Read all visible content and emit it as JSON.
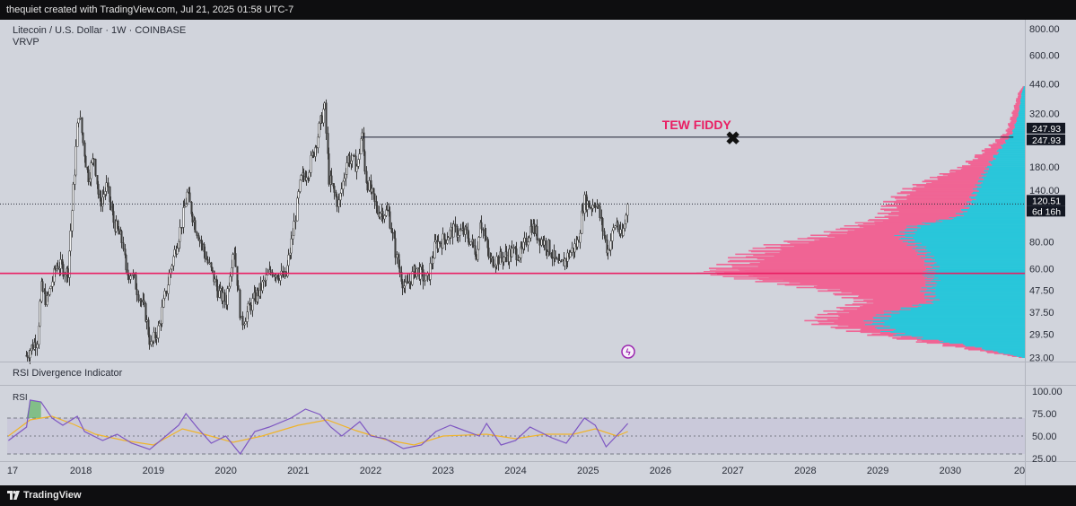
{
  "header": {
    "attribution": "thequiet created with TradingView.com, Jul 21, 2025 01:58 UTC-7"
  },
  "footer": {
    "brand": "TradingView"
  },
  "colors": {
    "background": "#d1d4dc",
    "candle": "#3d3d3d",
    "rsi_line": "#7e57c2",
    "rsi_ma": "#f0b429",
    "rsi_band": "#c4bfd8",
    "support_line": "#e91e63",
    "annotation": "#e91e63",
    "vp_up": "#26c6da",
    "vp_down": "#f06292"
  },
  "chart_data": [
    {
      "type": "candlestick",
      "title": "Litecoin / U.S. Dollar · 1W · COINBASE",
      "indicator": "VRVP",
      "y_scale": "log",
      "ylim": [
        22,
        880
      ],
      "xlim": [
        "2016-12-25",
        "2031-01-12"
      ],
      "y_ticks": [
        "800.00",
        "600.00",
        "440.00",
        "320.00",
        "180.00",
        "140.00",
        "80.00",
        "60.00",
        "47.50",
        "37.50",
        "29.50",
        "23.00"
      ],
      "x_ticks": [
        "17",
        "2018",
        "2019",
        "2020",
        "2021",
        "2022",
        "2023",
        "2024",
        "2025",
        "2026",
        "2027",
        "2028",
        "2029",
        "2030",
        "20"
      ],
      "price_path": [
        [
          "2017-03-27",
          23.5
        ],
        [
          "2017-05-22",
          28.0
        ],
        [
          "2017-06-12",
          48.5
        ],
        [
          "2017-07-10",
          42.0
        ],
        [
          "2017-08-28",
          62.0
        ],
        [
          "2017-09-11",
          62.5
        ],
        [
          "2017-10-23",
          57.0
        ],
        [
          "2017-11-27",
          165.0
        ],
        [
          "2017-12-18",
          330.0
        ],
        [
          "2018-01-08",
          240.0
        ],
        [
          "2018-02-05",
          160.0
        ],
        [
          "2018-03-05",
          200.0
        ],
        [
          "2018-04-02",
          120.0
        ],
        [
          "2018-05-07",
          145.0
        ],
        [
          "2018-06-11",
          100.0
        ],
        [
          "2018-07-30",
          78.0
        ],
        [
          "2018-08-13",
          56.0
        ],
        [
          "2018-09-10",
          58.0
        ],
        [
          "2018-11-19",
          37.0
        ],
        [
          "2018-12-17",
          26.0
        ],
        [
          "2019-01-28",
          32.0
        ],
        [
          "2019-03-25",
          60.0
        ],
        [
          "2019-05-13",
          91.0
        ],
        [
          "2019-06-17",
          135.0
        ],
        [
          "2019-07-29",
          95.0
        ],
        [
          "2019-09-16",
          70.0
        ],
        [
          "2019-11-25",
          46.0
        ],
        [
          "2019-12-30",
          42.0
        ],
        [
          "2020-02-10",
          78.0
        ],
        [
          "2020-03-16",
          33.0
        ],
        [
          "2020-05-25",
          44.0
        ],
        [
          "2020-08-17",
          59.0
        ],
        [
          "2020-10-26",
          54.0
        ],
        [
          "2020-11-30",
          84.0
        ],
        [
          "2021-01-11",
          155.0
        ],
        [
          "2021-02-22",
          175.0
        ],
        [
          "2021-04-05",
          250.0
        ],
        [
          "2021-05-10",
          350.0
        ],
        [
          "2021-05-31",
          160.0
        ],
        [
          "2021-07-19",
          120.0
        ],
        [
          "2021-09-06",
          200.0
        ],
        [
          "2021-10-25",
          180.0
        ],
        [
          "2021-11-15",
          265.0
        ],
        [
          "2021-12-06",
          160.0
        ],
        [
          "2022-01-31",
          112.0
        ],
        [
          "2022-03-28",
          110.0
        ],
        [
          "2022-05-16",
          62.0
        ],
        [
          "2022-06-20",
          48.0
        ],
        [
          "2022-08-15",
          60.0
        ],
        [
          "2022-10-10",
          52.0
        ],
        [
          "2022-11-21",
          78.0
        ],
        [
          "2023-01-02",
          82.0
        ],
        [
          "2023-02-13",
          90.0
        ],
        [
          "2023-04-24",
          88.0
        ],
        [
          "2023-06-19",
          70.0
        ],
        [
          "2023-07-03",
          105.0
        ],
        [
          "2023-08-21",
          65.0
        ],
        [
          "2023-10-30",
          68.0
        ],
        [
          "2023-12-18",
          72.0
        ],
        [
          "2024-01-29",
          70.0
        ],
        [
          "2024-03-18",
          96.0
        ],
        [
          "2024-04-22",
          85.0
        ],
        [
          "2024-06-17",
          75.0
        ],
        [
          "2024-08-05",
          60.0
        ],
        [
          "2024-09-16",
          68.0
        ],
        [
          "2024-11-11",
          80.0
        ],
        [
          "2024-12-09",
          125.0
        ],
        [
          "2025-01-13",
          118.0
        ],
        [
          "2025-02-10",
          125.0
        ],
        [
          "2025-04-07",
          72.0
        ],
        [
          "2025-05-19",
          100.0
        ],
        [
          "2025-06-16",
          82.0
        ],
        [
          "2025-07-21",
          120.51
        ]
      ],
      "horizontal_lines": [
        {
          "label": "TEW FIDDY",
          "price": 247.93,
          "start": "2021-11-15",
          "end": "2030-11-15",
          "color": "#1c2033"
        },
        {
          "price": 57.0,
          "color": "#e91e63",
          "full_width": true
        }
      ],
      "price_badges": [
        {
          "text": "247.93",
          "price": 247.93
        },
        {
          "text": "247.93",
          "price": 247.93
        },
        {
          "text": "120.51",
          "price": 120.51
        },
        {
          "text": "6d 16h",
          "price": 120.51
        }
      ],
      "annotations": [
        {
          "text": "TEW FIDDY",
          "date": "2026-07-01",
          "price": 270.0
        },
        {
          "text": "✖",
          "date": "2027-01-01",
          "price": 248.0
        }
      ],
      "volume_profile": {
        "levels": [
          [
            23,
            0.02,
            0.01
          ],
          [
            26,
            0.25,
            0.18
          ],
          [
            29.5,
            0.5,
            0.42
          ],
          [
            33.5,
            0.68,
            0.5
          ],
          [
            37.5,
            0.62,
            0.44
          ],
          [
            42,
            0.52,
            0.3
          ],
          [
            47.5,
            0.64,
            0.32
          ],
          [
            53,
            0.86,
            0.3
          ],
          [
            57,
            1.0,
            0.32
          ],
          [
            60,
            0.96,
            0.3
          ],
          [
            68,
            0.9,
            0.32
          ],
          [
            76,
            0.82,
            0.35
          ],
          [
            85,
            0.66,
            0.4
          ],
          [
            95,
            0.55,
            0.36
          ],
          [
            105,
            0.45,
            0.22
          ],
          [
            120,
            0.44,
            0.18
          ],
          [
            140,
            0.38,
            0.16
          ],
          [
            160,
            0.29,
            0.14
          ],
          [
            180,
            0.2,
            0.12
          ],
          [
            220,
            0.12,
            0.08
          ],
          [
            260,
            0.06,
            0.04
          ],
          [
            320,
            0.04,
            0.02
          ],
          [
            400,
            0.02,
            0.01
          ],
          [
            430,
            0.005,
            0.003
          ]
        ]
      }
    },
    {
      "type": "line",
      "title": "RSI Divergence Indicator",
      "legend": "RSI",
      "ylim": [
        22,
        106
      ],
      "y_ticks": [
        "100.00",
        "75.00",
        "50.00",
        "25.00"
      ],
      "bands": {
        "upper": 70,
        "middle": 50,
        "lower": 30
      },
      "series": [
        {
          "values": [
            [
              2017.0,
              45
            ],
            [
              2017.25,
              60
            ],
            [
              2017.3,
              90
            ],
            [
              2017.45,
              88
            ],
            [
              2017.6,
              70
            ],
            [
              2017.75,
              62
            ],
            [
              2017.95,
              72
            ],
            [
              2018.05,
              55
            ],
            [
              2018.3,
              45
            ],
            [
              2018.5,
              52
            ],
            [
              2018.7,
              42
            ],
            [
              2018.95,
              35
            ],
            [
              2019.1,
              45
            ],
            [
              2019.35,
              62
            ],
            [
              2019.45,
              75
            ],
            [
              2019.6,
              60
            ],
            [
              2019.8,
              42
            ],
            [
              2020.0,
              50
            ],
            [
              2020.2,
              30
            ],
            [
              2020.4,
              55
            ],
            [
              2020.6,
              60
            ],
            [
              2020.9,
              70
            ],
            [
              2021.1,
              80
            ],
            [
              2021.3,
              74
            ],
            [
              2021.45,
              60
            ],
            [
              2021.6,
              50
            ],
            [
              2021.85,
              66
            ],
            [
              2022.0,
              50
            ],
            [
              2022.2,
              47
            ],
            [
              2022.45,
              36
            ],
            [
              2022.7,
              40
            ],
            [
              2022.9,
              55
            ],
            [
              2023.1,
              62
            ],
            [
              2023.5,
              50
            ],
            [
              2023.6,
              64
            ],
            [
              2023.8,
              40
            ],
            [
              2024.0,
              45
            ],
            [
              2024.2,
              60
            ],
            [
              2024.5,
              48
            ],
            [
              2024.7,
              42
            ],
            [
              2024.95,
              70
            ],
            [
              2025.1,
              62
            ],
            [
              2025.25,
              38
            ],
            [
              2025.45,
              55
            ],
            [
              2025.55,
              64
            ]
          ]
        },
        {
          "values": [
            [
              2017.0,
              50
            ],
            [
              2017.3,
              68
            ],
            [
              2017.6,
              72
            ],
            [
              2017.9,
              63
            ],
            [
              2018.2,
              52
            ],
            [
              2018.6,
              45
            ],
            [
              2019.0,
              40
            ],
            [
              2019.4,
              58
            ],
            [
              2019.7,
              52
            ],
            [
              2020.1,
              43
            ],
            [
              2020.5,
              50
            ],
            [
              2021.0,
              62
            ],
            [
              2021.4,
              68
            ],
            [
              2021.8,
              56
            ],
            [
              2022.2,
              46
            ],
            [
              2022.6,
              40
            ],
            [
              2023.0,
              50
            ],
            [
              2023.6,
              52
            ],
            [
              2024.0,
              47
            ],
            [
              2024.4,
              52
            ],
            [
              2024.8,
              52
            ],
            [
              2025.1,
              58
            ],
            [
              2025.4,
              50
            ],
            [
              2025.55,
              55
            ]
          ]
        }
      ]
    }
  ]
}
